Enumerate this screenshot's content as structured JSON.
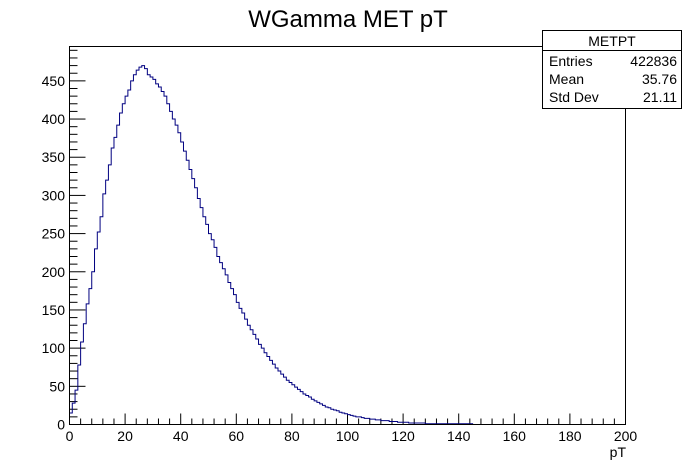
{
  "chart_data": {
    "type": "histogram",
    "title": "WGamma MET pT",
    "xlabel": "pT",
    "ylabel": "",
    "xlim": [
      0,
      200
    ],
    "ylim": [
      0,
      495
    ],
    "bin_width": 1,
    "line_color": "#000080",
    "x_ticks": [
      0,
      20,
      40,
      60,
      80,
      100,
      120,
      140,
      160,
      180,
      200
    ],
    "x_tick_labels": [
      "0",
      "20",
      "40",
      "60",
      "80",
      "100",
      "120",
      "140",
      "160",
      "180",
      "200"
    ],
    "y_ticks": [
      0,
      50,
      100,
      150,
      200,
      250,
      300,
      350,
      400,
      450
    ],
    "y_tick_labels": [
      "0",
      "50",
      "100",
      "150",
      "200",
      "250",
      "300",
      "350",
      "400",
      "450"
    ],
    "values": [
      15,
      28,
      45,
      78,
      108,
      132,
      158,
      178,
      200,
      230,
      252,
      272,
      302,
      320,
      340,
      362,
      376,
      392,
      408,
      420,
      430,
      438,
      450,
      458,
      464,
      468,
      470,
      466,
      458,
      455,
      452,
      446,
      442,
      436,
      430,
      420,
      410,
      400,
      392,
      382,
      370,
      358,
      346,
      334,
      322,
      310,
      296,
      284,
      272,
      262,
      250,
      242,
      232,
      220,
      212,
      204,
      196,
      186,
      178,
      170,
      160,
      152,
      146,
      138,
      130,
      124,
      118,
      112,
      105,
      100,
      94,
      89,
      84,
      79,
      74,
      70,
      66,
      62,
      58,
      55,
      52,
      49,
      46,
      43,
      40,
      38,
      36,
      33,
      31,
      29,
      27,
      25,
      23,
      22,
      20,
      19,
      18,
      16,
      15,
      14,
      13,
      12,
      11,
      10,
      10,
      9,
      8,
      8,
      7,
      7,
      6,
      6,
      5,
      5,
      5,
      4,
      4,
      4,
      3,
      3,
      3,
      3,
      2,
      2,
      2,
      2,
      2,
      2,
      1,
      1,
      1,
      1,
      1,
      1,
      1,
      1,
      1,
      1,
      1,
      1,
      1,
      1,
      1,
      1,
      1,
      0,
      0,
      0,
      0,
      0,
      0,
      0,
      0,
      0,
      0,
      0,
      0,
      0,
      0,
      0,
      0,
      0,
      0,
      0,
      0,
      0,
      0,
      0,
      0,
      0,
      0,
      0,
      0,
      0,
      0,
      0,
      0,
      0,
      0,
      0,
      0,
      0,
      0,
      0,
      0,
      0,
      0,
      0,
      0,
      0,
      0,
      0,
      0,
      0,
      0,
      0,
      0,
      0,
      0,
      0
    ],
    "stats_box": {
      "name": "METPT",
      "rows": [
        {
          "label": "Entries",
          "value": "422836"
        },
        {
          "label": "Mean",
          "value": "35.76"
        },
        {
          "label": "Std Dev",
          "value": "21.11"
        }
      ]
    }
  }
}
